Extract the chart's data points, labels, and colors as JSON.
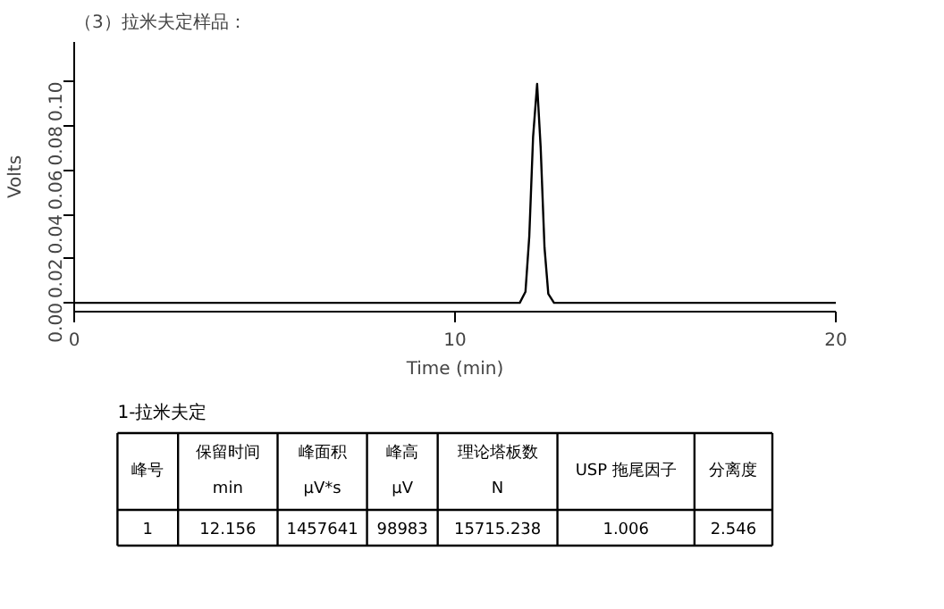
{
  "chart_data": {
    "type": "line",
    "title": "（3）拉米夫定样品：",
    "xlabel": "Time (min)",
    "ylabel": "Volts",
    "x": [
      0,
      11.7,
      11.85,
      11.95,
      12.05,
      12.156,
      12.25,
      12.35,
      12.45,
      12.6,
      20
    ],
    "series": [
      {
        "color": "#000000",
        "values": [
          0,
          0,
          0.005,
          0.03,
          0.075,
          0.099,
          0.07,
          0.025,
          0.004,
          0,
          0
        ]
      }
    ],
    "xlim": [
      0,
      20
    ],
    "xticks": [
      0,
      10,
      20
    ],
    "ylim": [
      -0.004,
      0.118
    ],
    "yticks": [
      {
        "value": 0,
        "label": "0.00"
      },
      0.02,
      0.04,
      0.06,
      0.08,
      {
        "value": 0.1,
        "label": "0.10"
      }
    ],
    "grid": false,
    "annotations": [
      "1-拉米夫定",
      "峰号",
      "保留时间\nmin",
      "峰面积\nµV*s",
      "峰高\nµV",
      "理论塔板数\nN",
      "USP 拖尾因子",
      "分离度",
      "1",
      "12.156",
      "1457641",
      "98983",
      "15715.238",
      "1.006",
      "2.546"
    ]
  }
}
